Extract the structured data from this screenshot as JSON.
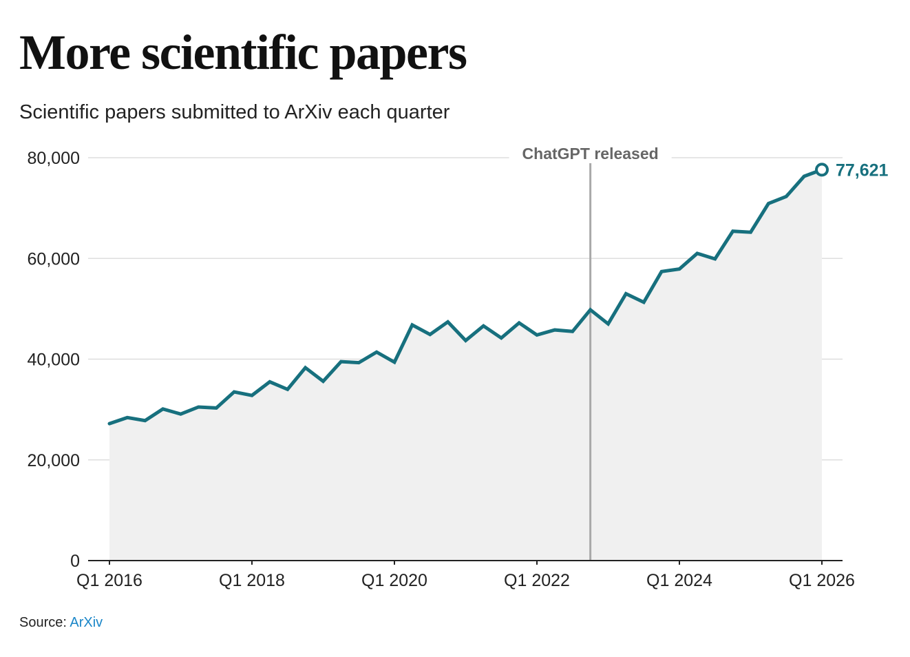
{
  "title": "More scientific papers",
  "subtitle": "Scientific papers submitted to ArXiv each quarter",
  "source": {
    "prefix": "Source:",
    "link_text": "ArXiv"
  },
  "colors": {
    "line": "#17707e",
    "area": "#f0f0f0",
    "gridline": "#dedede",
    "axis": "#222222",
    "annotation_line": "#a9a9a9",
    "annotation_text": "#666666",
    "source_link": "#1a86c8"
  },
  "chart_data": {
    "type": "area",
    "title": "More scientific papers",
    "subtitle": "Scientific papers submitted to ArXiv each quarter",
    "xlabel": "",
    "ylabel": "",
    "ylim": [
      0,
      80000
    ],
    "yticks": [
      0,
      20000,
      40000,
      60000,
      80000
    ],
    "ytick_labels": [
      "0",
      "20,000",
      "40,000",
      "60,000",
      "80,000"
    ],
    "xtick_labels": [
      "Q1 2016",
      "Q1 2018",
      "Q1 2020",
      "Q1 2022",
      "Q1 2024",
      "Q1 2026"
    ],
    "grid": true,
    "x": [
      "Q1 2016",
      "Q2 2016",
      "Q3 2016",
      "Q4 2016",
      "Q1 2017",
      "Q2 2017",
      "Q3 2017",
      "Q4 2017",
      "Q1 2018",
      "Q2 2018",
      "Q3 2018",
      "Q4 2018",
      "Q1 2019",
      "Q2 2019",
      "Q3 2019",
      "Q4 2019",
      "Q1 2020",
      "Q2 2020",
      "Q3 2020",
      "Q4 2020",
      "Q1 2021",
      "Q2 2021",
      "Q3 2021",
      "Q4 2021",
      "Q1 2022",
      "Q2 2022",
      "Q3 2022",
      "Q4 2022",
      "Q1 2023",
      "Q2 2023",
      "Q3 2023",
      "Q4 2023",
      "Q1 2024",
      "Q2 2024",
      "Q3 2024",
      "Q4 2024",
      "Q1 2025",
      "Q2 2025",
      "Q3 2025",
      "Q4 2025",
      "Q1 2026"
    ],
    "series": [
      {
        "values": [
          27200,
          28400,
          27800,
          30100,
          29100,
          30500,
          30300,
          33500,
          32800,
          35500,
          34000,
          38300,
          35600,
          39500,
          39300,
          41400,
          39400,
          46800,
          44900,
          47400,
          43700,
          46600,
          44200,
          47200,
          44800,
          45800,
          45500,
          49800,
          47000,
          53000,
          51300,
          57400,
          57900,
          61000,
          59900,
          65400,
          65200,
          70900,
          72300,
          76300,
          77621
        ]
      }
    ],
    "annotations": [
      {
        "text": "ChatGPT released",
        "x": "Q4 2022"
      }
    ],
    "end_label": "77,621"
  }
}
